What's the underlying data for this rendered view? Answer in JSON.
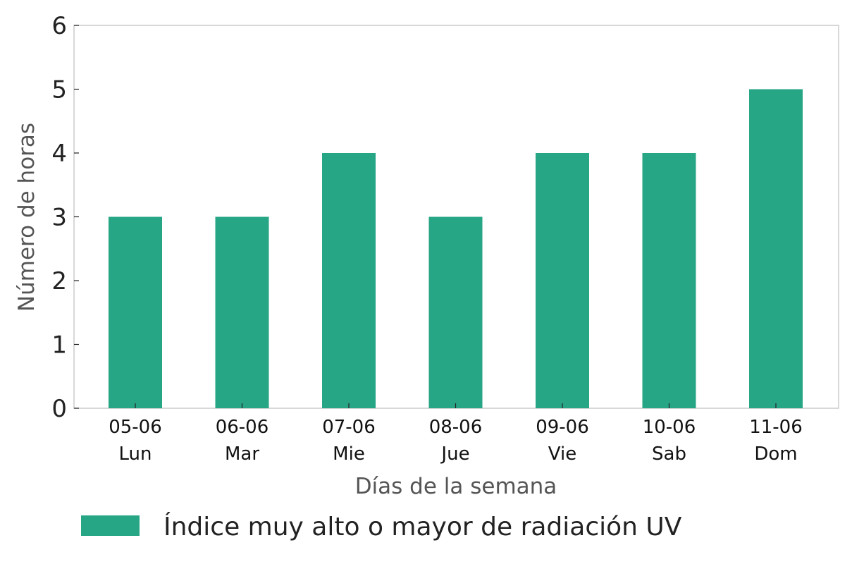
{
  "chart_data": {
    "type": "bar",
    "categories": [
      [
        "05-06",
        "Lun"
      ],
      [
        "06-06",
        "Mar"
      ],
      [
        "07-06",
        "Mie"
      ],
      [
        "08-06",
        "Jue"
      ],
      [
        "09-06",
        "Vie"
      ],
      [
        "10-06",
        "Sab"
      ],
      [
        "11-06",
        "Dom"
      ]
    ],
    "series": [
      {
        "name": "Índice muy alto o mayor de radiación UV",
        "values": [
          3,
          3,
          4,
          3,
          4,
          4,
          5
        ],
        "color": "#27a686"
      }
    ],
    "xlabel": "Días de la semana",
    "ylabel": "Número de horas",
    "ylim": [
      0,
      6
    ],
    "yticks": [
      0,
      1,
      2,
      3,
      4,
      5,
      6
    ],
    "grid": false,
    "legend": "bottom"
  }
}
